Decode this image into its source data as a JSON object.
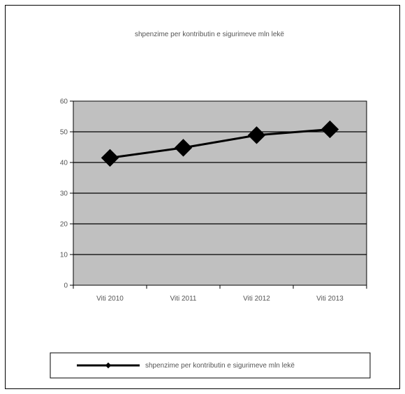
{
  "chart_data": {
    "type": "line",
    "title": "shpenzime per kontributin e sigurimeve mln lekë",
    "categories": [
      "Viti 2010",
      "Viti 2011",
      "Viti 2012",
      "Viti 2013"
    ],
    "series": [
      {
        "name": "shpenzime per kontributin e sigurimeve mln lekë",
        "values": [
          41.5,
          44.8,
          48.9,
          50.8
        ]
      }
    ],
    "ylim": [
      0,
      60
    ],
    "yticks": [
      0,
      10,
      20,
      30,
      40,
      50,
      60
    ],
    "grid": true,
    "legend": "bottom",
    "colors": {
      "plot_background": "#c0c0c0",
      "line": "#000000",
      "marker": "#000000"
    }
  }
}
